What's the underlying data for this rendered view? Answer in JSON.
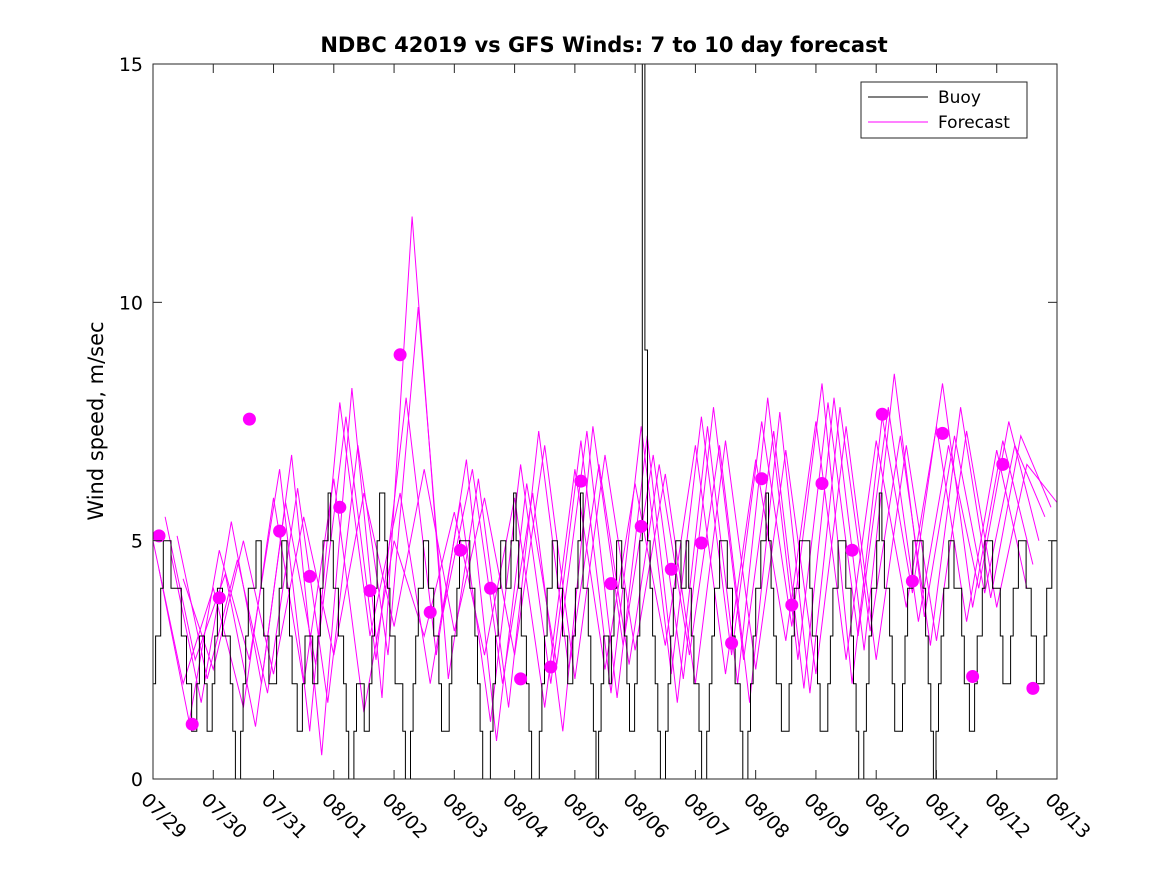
{
  "chart_data": {
    "type": "line",
    "title": "NDBC 42019 vs GFS Winds: 7 to 10 day forecast",
    "ylabel": "Wind speed, m/sec",
    "xlabel": "",
    "ylim": [
      0,
      15
    ],
    "xlim": [
      0,
      15
    ],
    "x_ticks": [
      "07/29",
      "07/30",
      "07/31",
      "08/01",
      "08/02",
      "08/03",
      "08/04",
      "08/05",
      "08/06",
      "08/07",
      "08/08",
      "08/09",
      "08/10",
      "08/11",
      "08/12",
      "08/13"
    ],
    "y_ticks": [
      0,
      5,
      10,
      15
    ],
    "grid": false,
    "legend": {
      "position": "top-right",
      "entries": [
        {
          "name": "Buoy",
          "color": "#000000"
        },
        {
          "name": "Forecast",
          "color": "#ff00ff"
        }
      ]
    },
    "buoy_color": "#000000",
    "forecast_color": "#ff00ff",
    "buoy": {
      "name": "Buoy",
      "hourly_values": [
        2,
        3,
        3,
        4,
        5,
        5,
        5,
        4,
        4,
        4,
        4,
        3,
        3,
        2,
        2,
        1,
        1,
        2,
        3,
        3,
        2,
        1,
        1,
        2,
        3,
        4,
        4,
        3,
        3,
        3,
        2,
        1,
        0,
        0,
        1,
        2,
        3,
        4,
        4,
        4,
        5,
        5,
        4,
        3,
        3,
        2,
        2,
        2,
        3,
        4,
        5,
        5,
        4,
        3,
        2,
        2,
        1,
        1,
        2,
        3,
        3,
        3,
        2,
        2,
        3,
        4,
        5,
        5,
        6,
        5,
        4,
        4,
        3,
        3,
        2,
        1,
        0,
        0,
        1,
        2,
        2,
        2,
        1,
        1,
        2,
        3,
        4,
        5,
        6,
        6,
        5,
        4,
        3,
        3,
        2,
        2,
        2,
        1,
        0,
        0,
        1,
        2,
        3,
        4,
        4,
        5,
        5,
        4,
        4,
        3,
        3,
        2,
        1,
        1,
        1,
        2,
        3,
        3,
        4,
        5,
        5,
        5,
        5,
        4,
        4,
        3,
        2,
        1,
        0,
        0,
        0,
        1,
        2,
        3,
        4,
        5,
        5,
        4,
        4,
        5,
        6,
        5,
        4,
        3,
        3,
        2,
        1,
        0,
        0,
        0,
        1,
        2,
        3,
        4,
        4,
        5,
        5,
        4,
        4,
        3,
        3,
        2,
        2,
        3,
        4,
        5,
        6,
        4,
        4,
        3,
        2,
        1,
        0,
        1,
        2,
        3,
        3,
        2,
        3,
        4,
        5,
        5,
        4,
        3,
        2,
        1,
        1,
        2,
        3,
        5,
        15,
        9,
        5,
        4,
        3,
        2,
        1,
        0,
        0,
        1,
        2,
        3,
        4,
        5,
        5,
        4,
        4,
        5,
        4,
        3,
        2,
        2,
        1,
        0,
        0,
        1,
        2,
        3,
        4,
        4,
        5,
        5,
        5,
        4,
        4,
        3,
        2,
        2,
        1,
        0,
        0,
        1,
        2,
        3,
        4,
        4,
        5,
        5,
        6,
        5,
        4,
        3,
        2,
        2,
        1,
        1,
        1,
        2,
        3,
        4,
        4,
        5,
        5,
        5,
        5,
        4,
        3,
        3,
        2,
        1,
        1,
        1,
        2,
        3,
        4,
        4,
        5,
        5,
        5,
        4,
        4,
        3,
        2,
        1,
        0,
        0,
        1,
        2,
        3,
        4,
        4,
        5,
        6,
        5,
        4,
        4,
        3,
        2,
        1,
        1,
        1,
        2,
        3,
        4,
        4,
        5,
        5,
        5,
        5,
        4,
        3,
        2,
        1,
        0,
        1,
        2,
        3,
        4,
        4,
        5,
        5,
        4,
        4,
        4,
        3,
        2,
        2,
        1,
        1,
        2,
        3,
        3,
        4,
        5,
        5,
        5,
        4,
        4,
        4,
        3,
        2,
        2,
        2,
        3,
        4,
        4,
        5,
        5,
        5,
        4,
        4,
        3,
        3,
        2,
        2,
        2,
        3,
        4,
        4,
        5,
        5,
        5
      ]
    },
    "forecast_series": [
      {
        "x": [
          0,
          0.5,
          1,
          1.5,
          2,
          2.5,
          3,
          3.5,
          4,
          4.5,
          5,
          5.5,
          6,
          6.5,
          7,
          7.5,
          8,
          8.5,
          9,
          9.5,
          10,
          10.5,
          11,
          11.5,
          12,
          12.5,
          13,
          13.5,
          14,
          14.5
        ],
        "y": [
          5.0,
          2.0,
          4.0,
          1.5,
          5.9,
          2.0,
          6.3,
          1.4,
          5.0,
          3.0,
          5.6,
          2.6,
          5.9,
          1.5,
          6.5,
          2.3,
          6.2,
          2.8,
          7.0,
          2.2,
          6.7,
          2.9,
          7.5,
          2.5,
          7.1,
          3.6,
          7.4,
          3.3,
          6.9,
          4.0
        ]
      },
      {
        "x": [
          0.1,
          0.6,
          1.1,
          1.6,
          2.1,
          2.6,
          3.1,
          3.6,
          4.1,
          4.6,
          5.1,
          5.6,
          6.1,
          6.6,
          7.1,
          7.6,
          8.1,
          8.6,
          9.1,
          9.6,
          10.1,
          10.6,
          11.1,
          11.6,
          12.1,
          12.6,
          13.1,
          13.6,
          14.1,
          14.6
        ],
        "y": [
          4.4,
          1.2,
          4.8,
          2.5,
          6.5,
          1.0,
          7.9,
          3.0,
          6.0,
          2.0,
          5.8,
          1.2,
          6.6,
          2.0,
          7.1,
          1.8,
          7.4,
          2.2,
          7.6,
          2.6,
          7.5,
          3.2,
          8.3,
          2.0,
          7.6,
          3.9,
          8.3,
          3.6,
          7.1,
          4.5
        ]
      },
      {
        "x": [
          0.2,
          0.7,
          1.2,
          1.7,
          2.2,
          2.7,
          3.2,
          3.7,
          4.2,
          4.7,
          5.2,
          5.7,
          6.2,
          6.7,
          7.2,
          7.7,
          8.2,
          8.7,
          9.2,
          9.7,
          10.2,
          10.7,
          11.2,
          11.7,
          12.2,
          12.7,
          13.2,
          13.7,
          14.2,
          14.7
        ],
        "y": [
          5.5,
          2.5,
          4.3,
          1.1,
          5.8,
          2.4,
          7.6,
          2.5,
          8.0,
          2.6,
          6.7,
          0.8,
          6.2,
          2.4,
          7.3,
          1.7,
          7.2,
          1.6,
          7.4,
          2.0,
          8.0,
          2.5,
          7.9,
          3.0,
          7.8,
          3.3,
          7.0,
          4.0,
          7.5,
          5.0
        ]
      },
      {
        "x": [
          0.3,
          0.8,
          1.3,
          1.8,
          2.3,
          2.8,
          3.3,
          3.8,
          4.3,
          4.8,
          5.3,
          5.8,
          6.3,
          6.8,
          7.3,
          7.8,
          8.3,
          8.8,
          9.3,
          9.8,
          10.3,
          10.8,
          11.3,
          11.8,
          12.3,
          12.8,
          13.3,
          13.8,
          14.3,
          14.8
        ],
        "y": [
          4.7,
          1.6,
          5.4,
          2.0,
          6.8,
          0.5,
          8.2,
          1.7,
          11.8,
          3.4,
          6.5,
          2.0,
          6.0,
          1.0,
          7.4,
          2.8,
          6.8,
          2.1,
          7.8,
          2.5,
          7.3,
          1.9,
          8.0,
          2.7,
          8.5,
          3.4,
          7.2,
          3.9,
          7.0,
          5.5
        ]
      },
      {
        "x": [
          0.4,
          0.9,
          1.4,
          1.9,
          2.4,
          2.9,
          3.4,
          3.9,
          4.4,
          4.9,
          5.4,
          5.9,
          6.4,
          6.9,
          7.4,
          7.9,
          8.4,
          8.9,
          9.4,
          9.9,
          10.4,
          10.9,
          11.4,
          11.9,
          12.4,
          12.9,
          13.4,
          13.9,
          14.4,
          14.9
        ],
        "y": [
          5.1,
          2.1,
          4.6,
          1.8,
          6.1,
          1.6,
          7.0,
          2.6,
          9.9,
          2.1,
          6.3,
          1.5,
          7.3,
          2.3,
          6.6,
          2.4,
          6.6,
          2.6,
          7.0,
          1.6,
          7.7,
          1.8,
          7.8,
          3.1,
          7.2,
          2.8,
          7.8,
          3.8,
          7.2,
          5.7
        ]
      },
      {
        "x": [
          0.5,
          1.0,
          1.5,
          2.0,
          2.5,
          3.0,
          3.5,
          4.0,
          4.5,
          5.0,
          5.5,
          6.0,
          6.5,
          7.0,
          7.5,
          8.0,
          8.5,
          9.0,
          9.5,
          10.0,
          10.5,
          11.0,
          11.5,
          12.0,
          12.5,
          13.0,
          13.5,
          14.0,
          14.5,
          15.0
        ],
        "y": [
          4.2,
          2.3,
          5.0,
          2.2,
          5.5,
          2.6,
          6.0,
          3.2,
          6.5,
          3.1,
          5.9,
          2.6,
          7.0,
          2.1,
          6.8,
          2.7,
          6.4,
          2.0,
          7.1,
          2.3,
          6.9,
          2.2,
          7.4,
          2.5,
          7.0,
          2.9,
          7.3,
          3.6,
          6.6,
          5.8
        ]
      }
    ],
    "forecast_markers": {
      "x": [
        0.1,
        0.65,
        1.1,
        1.6,
        2.1,
        2.6,
        3.1,
        3.6,
        4.1,
        4.6,
        5.1,
        5.6,
        6.1,
        6.6,
        7.1,
        7.6,
        8.1,
        8.6,
        9.1,
        9.6,
        10.1,
        10.6,
        11.1,
        11.6,
        12.1,
        12.6,
        13.1,
        13.6,
        14.1,
        14.6
      ],
      "y": [
        5.1,
        1.15,
        3.8,
        7.55,
        5.2,
        4.25,
        5.7,
        3.95,
        8.9,
        3.5,
        4.8,
        4.0,
        2.1,
        2.35,
        6.25,
        4.1,
        5.3,
        4.4,
        4.95,
        2.85,
        6.3,
        3.65,
        6.2,
        4.8,
        7.65,
        4.15,
        7.25,
        2.15,
        6.6,
        1.9
      ]
    }
  }
}
